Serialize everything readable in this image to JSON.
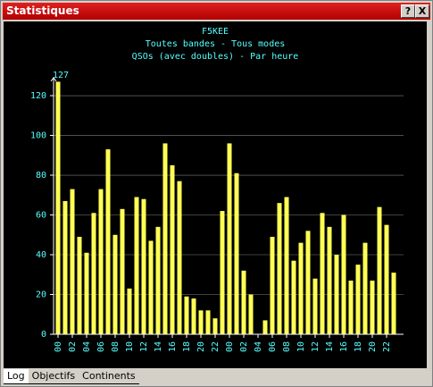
{
  "window": {
    "title": "Statistiques",
    "buttons": [
      "?",
      "X"
    ],
    "tabs": [
      "Log",
      "Objectifs",
      "Continents"
    ]
  },
  "chart_data": {
    "type": "bar",
    "title": "F5KEE",
    "subtitle": [
      "Toutes bandes - Tous modes",
      "QSOs (avec doubles) - Par heure"
    ],
    "categories": [
      "00",
      null,
      "02",
      null,
      "04",
      null,
      "06",
      null,
      "08",
      null,
      "10",
      null,
      "12",
      null,
      "14",
      null,
      "16",
      null,
      "18",
      null,
      "20",
      null,
      "22",
      null,
      "00",
      null,
      "02",
      null,
      "04",
      null,
      "06",
      null,
      "08",
      null,
      "10",
      null,
      "12",
      null,
      "14",
      null,
      "16",
      null,
      "18",
      null,
      "20",
      null,
      "22",
      null
    ],
    "values": [
      127,
      67,
      73,
      49,
      41,
      61,
      73,
      93,
      50,
      63,
      23,
      69,
      68,
      47,
      54,
      96,
      85,
      77,
      19,
      18,
      12,
      12,
      8,
      62,
      96,
      81,
      32,
      20,
      0,
      7,
      49,
      66,
      69,
      37,
      46,
      52,
      28,
      61,
      54,
      40,
      60,
      27,
      35,
      46,
      27,
      64,
      55,
      31
    ],
    "color": "#ffff55",
    "ylim": [
      0,
      129
    ],
    "yticks": [
      0,
      20,
      40,
      60,
      80,
      100,
      120
    ],
    "grid": true
  }
}
